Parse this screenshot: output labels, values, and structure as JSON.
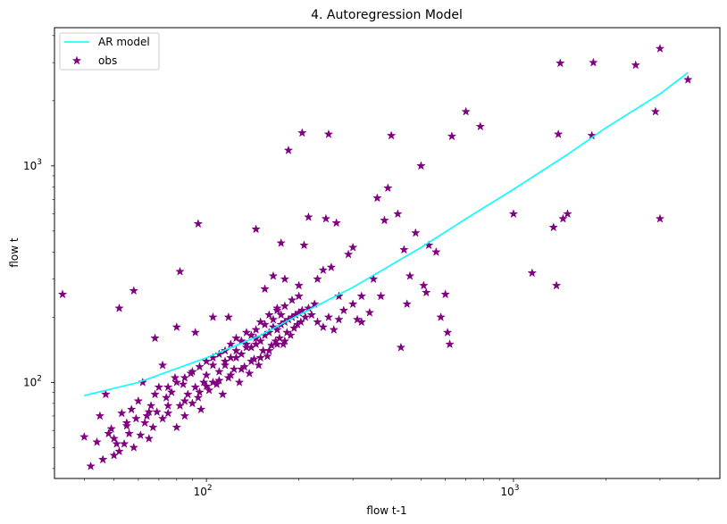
{
  "chart_data": {
    "type": "scatter",
    "title": "4. Autoregression Model",
    "xlabel": "flow t-1",
    "ylabel": "flow t",
    "xscale": "log",
    "yscale": "log",
    "xlim": [
      32,
      4700
    ],
    "ylim": [
      36,
      4350
    ],
    "grid": false,
    "legend_placement": "top-left",
    "xticks": [
      {
        "value": 100,
        "label": "10",
        "exp": "2"
      },
      {
        "value": 1000,
        "label": "10",
        "exp": "3"
      }
    ],
    "yticks": [
      {
        "value": 100,
        "label": "10",
        "exp": "2"
      },
      {
        "value": 1000,
        "label": "10",
        "exp": "3"
      }
    ],
    "series": [
      {
        "name": "AR model",
        "kind": "line",
        "color": "#00ffff",
        "points": [
          [
            40,
            87
          ],
          [
            60,
            100
          ],
          [
            100,
            130
          ],
          [
            150,
            165
          ],
          [
            200,
            205
          ],
          [
            300,
            275
          ],
          [
            500,
            420
          ],
          [
            700,
            570
          ],
          [
            1000,
            780
          ],
          [
            1500,
            1130
          ],
          [
            2000,
            1500
          ],
          [
            3000,
            2150
          ],
          [
            3700,
            2700
          ]
        ]
      },
      {
        "name": "obs",
        "kind": "scatter",
        "color": "#800080",
        "marker": "star",
        "points": [
          [
            42,
            41
          ],
          [
            40,
            56
          ],
          [
            44,
            53
          ],
          [
            45,
            70
          ],
          [
            46,
            44
          ],
          [
            47,
            88
          ],
          [
            48,
            58
          ],
          [
            49,
            61
          ],
          [
            50,
            46
          ],
          [
            50,
            55
          ],
          [
            51,
            52
          ],
          [
            52,
            48
          ],
          [
            53,
            72
          ],
          [
            54,
            52
          ],
          [
            55,
            63
          ],
          [
            56,
            58
          ],
          [
            57,
            75
          ],
          [
            58,
            50
          ],
          [
            59,
            68
          ],
          [
            60,
            82
          ],
          [
            61,
            57
          ],
          [
            62,
            100
          ],
          [
            63,
            65
          ],
          [
            64,
            70
          ],
          [
            65,
            55
          ],
          [
            66,
            78
          ],
          [
            67,
            62
          ],
          [
            68,
            88
          ],
          [
            69,
            73
          ],
          [
            70,
            95
          ],
          [
            72,
            68
          ],
          [
            74,
            85
          ],
          [
            75,
            72
          ],
          [
            77,
            90
          ],
          [
            79,
            105
          ],
          [
            80,
            62
          ],
          [
            82,
            78
          ],
          [
            84,
            98
          ],
          [
            85,
            70
          ],
          [
            87,
            88
          ],
          [
            89,
            110
          ],
          [
            90,
            80
          ],
          [
            92,
            95
          ],
          [
            94,
            85
          ],
          [
            96,
            75
          ],
          [
            98,
            100
          ],
          [
            100,
            108
          ],
          [
            102,
            92
          ],
          [
            105,
            120
          ],
          [
            108,
            98
          ],
          [
            110,
            112
          ],
          [
            113,
            88
          ],
          [
            115,
            125
          ],
          [
            118,
            105
          ],
          [
            120,
            130
          ],
          [
            123,
            115
          ],
          [
            125,
            140
          ],
          [
            128,
            100
          ],
          [
            130,
            135
          ],
          [
            133,
            118
          ],
          [
            135,
            150
          ],
          [
            138,
            110
          ],
          [
            140,
            145
          ],
          [
            143,
            128
          ],
          [
            145,
            160
          ],
          [
            148,
            120
          ],
          [
            150,
            155
          ],
          [
            153,
            140
          ],
          [
            155,
            165
          ],
          [
            158,
            132
          ],
          [
            160,
            170
          ],
          [
            163,
            148
          ],
          [
            165,
            180
          ],
          [
            168,
            155
          ],
          [
            170,
            175
          ],
          [
            173,
            160
          ],
          [
            175,
            185
          ],
          [
            178,
            150
          ],
          [
            180,
            190
          ],
          [
            183,
            170
          ],
          [
            185,
            195
          ],
          [
            188,
            165
          ],
          [
            190,
            200
          ],
          [
            193,
            178
          ],
          [
            195,
            205
          ],
          [
            198,
            185
          ],
          [
            200,
            210
          ],
          [
            203,
            190
          ],
          [
            205,
            215
          ],
          [
            210,
            200
          ],
          [
            215,
            220
          ],
          [
            220,
            205
          ],
          [
            225,
            230
          ],
          [
            230,
            190
          ],
          [
            240,
            180
          ],
          [
            250,
            200
          ],
          [
            260,
            175
          ],
          [
            270,
            195
          ],
          [
            280,
            215
          ],
          [
            300,
            230
          ],
          [
            320,
            190
          ],
          [
            340,
            210
          ],
          [
            150,
            190
          ],
          [
            145,
            175
          ],
          [
            140,
            165
          ],
          [
            135,
            170
          ],
          [
            130,
            155
          ],
          [
            125,
            160
          ],
          [
            120,
            150
          ],
          [
            115,
            140
          ],
          [
            110,
            135
          ],
          [
            105,
            130
          ],
          [
            100,
            125
          ],
          [
            95,
            118
          ],
          [
            90,
            112
          ],
          [
            85,
            105
          ],
          [
            80,
            100
          ],
          [
            75,
            95
          ],
          [
            160,
            205
          ],
          [
            170,
            215
          ],
          [
            180,
            225
          ],
          [
            190,
            240
          ],
          [
            200,
            250
          ],
          [
            165,
            195
          ],
          [
            175,
            205
          ],
          [
            155,
            185
          ],
          [
            145,
            150
          ],
          [
            135,
            145
          ],
          [
            125,
            130
          ],
          [
            115,
            120
          ],
          [
            105,
            100
          ],
          [
            95,
            90
          ],
          [
            85,
            82
          ],
          [
            75,
            78
          ],
          [
            65,
            73
          ],
          [
            55,
            65
          ],
          [
            160,
            140
          ],
          [
            170,
            150
          ],
          [
            180,
            155
          ],
          [
            150,
            130
          ],
          [
            140,
            125
          ],
          [
            130,
            115
          ],
          [
            120,
            108
          ],
          [
            110,
            102
          ],
          [
            100,
            96
          ],
          [
            34,
            255
          ],
          [
            52,
            220
          ],
          [
            58,
            265
          ],
          [
            68,
            160
          ],
          [
            72,
            120
          ],
          [
            80,
            180
          ],
          [
            82,
            325
          ],
          [
            92,
            170
          ],
          [
            94,
            540
          ],
          [
            105,
            200
          ],
          [
            118,
            200
          ],
          [
            130,
            155
          ],
          [
            145,
            510
          ],
          [
            155,
            270
          ],
          [
            165,
            310
          ],
          [
            170,
            220
          ],
          [
            175,
            440
          ],
          [
            180,
            300
          ],
          [
            185,
            1180
          ],
          [
            200,
            280
          ],
          [
            205,
            1420
          ],
          [
            208,
            430
          ],
          [
            215,
            580
          ],
          [
            230,
            300
          ],
          [
            240,
            330
          ],
          [
            245,
            570
          ],
          [
            250,
            1400
          ],
          [
            255,
            340
          ],
          [
            265,
            545
          ],
          [
            270,
            250
          ],
          [
            290,
            390
          ],
          [
            300,
            420
          ],
          [
            310,
            195
          ],
          [
            320,
            250
          ],
          [
            350,
            300
          ],
          [
            360,
            710
          ],
          [
            370,
            250
          ],
          [
            380,
            560
          ],
          [
            390,
            790
          ],
          [
            400,
            1380
          ],
          [
            420,
            600
          ],
          [
            430,
            145
          ],
          [
            440,
            410
          ],
          [
            450,
            230
          ],
          [
            460,
            310
          ],
          [
            480,
            490
          ],
          [
            500,
            1000
          ],
          [
            510,
            280
          ],
          [
            520,
            260
          ],
          [
            530,
            430
          ],
          [
            560,
            400
          ],
          [
            580,
            200
          ],
          [
            600,
            255
          ],
          [
            610,
            170
          ],
          [
            620,
            150
          ],
          [
            630,
            1370
          ],
          [
            700,
            1780
          ],
          [
            780,
            1520
          ],
          [
            1000,
            600
          ],
          [
            1150,
            320
          ],
          [
            1350,
            520
          ],
          [
            1380,
            280
          ],
          [
            1400,
            1400
          ],
          [
            1420,
            2980
          ],
          [
            1450,
            570
          ],
          [
            1500,
            600
          ],
          [
            1800,
            1380
          ],
          [
            1820,
            3000
          ],
          [
            2500,
            2920
          ],
          [
            2900,
            1780
          ],
          [
            3000,
            3480
          ],
          [
            3000,
            570
          ],
          [
            3700,
            2500
          ]
        ]
      }
    ]
  }
}
